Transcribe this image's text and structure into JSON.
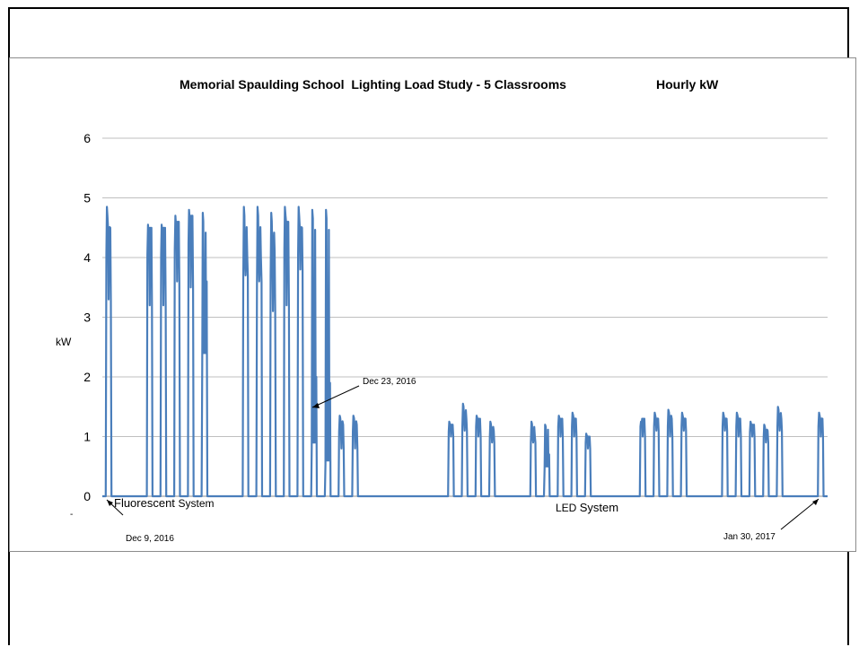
{
  "chart_data": {
    "type": "line",
    "title": "Memorial Spaulding School  Lighting Load Study - 5 Classrooms",
    "subtitle": "Hourly kW",
    "xlabel": "",
    "ylabel": "kW",
    "ylim": [
      0,
      6
    ],
    "xlim": [
      "2016-12-09",
      "2017-01-30"
    ],
    "yticks": [
      "0",
      "1",
      "2",
      "3",
      "4",
      "5",
      "6"
    ],
    "grid": true,
    "legend": "none",
    "colors": {
      "line": "#4a7ebb",
      "grid": "#bfbfbf",
      "axis": "#8c8c8c"
    },
    "series": [
      {
        "name": "",
        "days": [
          {
            "date": "2016-12-09",
            "peak": 4.85,
            "mid": 3.3,
            "late": 4.5
          },
          {
            "date": "2016-12-12",
            "peak": 4.55,
            "mid": 3.2,
            "late": 4.5
          },
          {
            "date": "2016-12-13",
            "peak": 4.55,
            "mid": 3.2,
            "late": 4.5
          },
          {
            "date": "2016-12-14",
            "peak": 4.7,
            "mid": 3.6,
            "late": 4.6
          },
          {
            "date": "2016-12-15",
            "peak": 4.8,
            "mid": 3.5,
            "late": 4.7
          },
          {
            "date": "2016-12-16",
            "peak": 4.75,
            "mid": 3.6,
            "late": 2.4
          },
          {
            "date": "2016-12-19",
            "peak": 4.85,
            "mid": 3.7,
            "late": 4.0
          },
          {
            "date": "2016-12-20",
            "peak": 4.85,
            "mid": 3.6,
            "late": 4.0
          },
          {
            "date": "2016-12-21",
            "peak": 4.75,
            "mid": 3.1,
            "late": 4.1
          },
          {
            "date": "2016-12-22",
            "peak": 4.85,
            "mid": 3.2,
            "late": 4.6
          },
          {
            "date": "2016-12-23",
            "peak": 4.85,
            "mid": 3.8,
            "late": 4.5
          },
          {
            "date": "2016-12-24",
            "peak": 4.8,
            "mid": 2.0,
            "late": 0.9
          },
          {
            "date": "2016-12-25",
            "peak": 4.8,
            "mid": 1.9,
            "late": 0.6
          },
          {
            "date": "2016-12-26",
            "peak": 1.35,
            "mid": 0.8,
            "late": 1.2
          },
          {
            "date": "2016-12-27",
            "peak": 1.35,
            "mid": 0.8,
            "late": 1.2
          },
          {
            "date": "2017-01-03",
            "peak": 1.25,
            "mid": 1.0,
            "late": 1.2
          },
          {
            "date": "2017-01-04",
            "peak": 1.55,
            "mid": 1.1,
            "late": 1.3
          },
          {
            "date": "2017-01-05",
            "peak": 1.35,
            "mid": 1.0,
            "late": 1.3
          },
          {
            "date": "2017-01-06",
            "peak": 1.25,
            "mid": 0.9,
            "late": 1.1
          },
          {
            "date": "2017-01-09",
            "peak": 1.25,
            "mid": 0.9,
            "late": 1.0
          },
          {
            "date": "2017-01-10",
            "peak": 1.2,
            "mid": 0.7,
            "late": 0.5
          },
          {
            "date": "2017-01-11",
            "peak": 1.35,
            "mid": 1.0,
            "late": 1.3
          },
          {
            "date": "2017-01-12",
            "peak": 1.4,
            "mid": 1.0,
            "late": 1.3
          },
          {
            "date": "2017-01-13",
            "peak": 1.05,
            "mid": 0.8,
            "late": 1.0
          },
          {
            "date": "2017-01-17",
            "peak": 1.25,
            "mid": 1.0,
            "late": 1.3
          },
          {
            "date": "2017-01-18",
            "peak": 1.4,
            "mid": 1.1,
            "late": 1.3
          },
          {
            "date": "2017-01-19",
            "peak": 1.45,
            "mid": 1.0,
            "late": 1.3
          },
          {
            "date": "2017-01-20",
            "peak": 1.4,
            "mid": 1.1,
            "late": 1.3
          },
          {
            "date": "2017-01-23",
            "peak": 1.4,
            "mid": 1.1,
            "late": 1.3
          },
          {
            "date": "2017-01-24",
            "peak": 1.4,
            "mid": 1.0,
            "late": 1.3
          },
          {
            "date": "2017-01-25",
            "peak": 1.25,
            "mid": 1.0,
            "late": 1.2
          },
          {
            "date": "2017-01-26",
            "peak": 1.2,
            "mid": 0.9,
            "late": 1.1
          },
          {
            "date": "2017-01-27",
            "peak": 1.5,
            "mid": 1.1,
            "late": 1.3
          },
          {
            "date": "2017-01-30",
            "peak": 1.4,
            "mid": 1.0,
            "late": 1.3
          }
        ]
      }
    ],
    "annotations": {
      "fluorescent_word": "Fluorescent",
      "fluorescent_system": "System",
      "led_word": "LED",
      "led_system": "System",
      "dec9": "Dec 9, 2016",
      "dec23": "Dec 23, 2016",
      "jan30": "Jan 30, 2017",
      "tick_mark": "-"
    }
  }
}
